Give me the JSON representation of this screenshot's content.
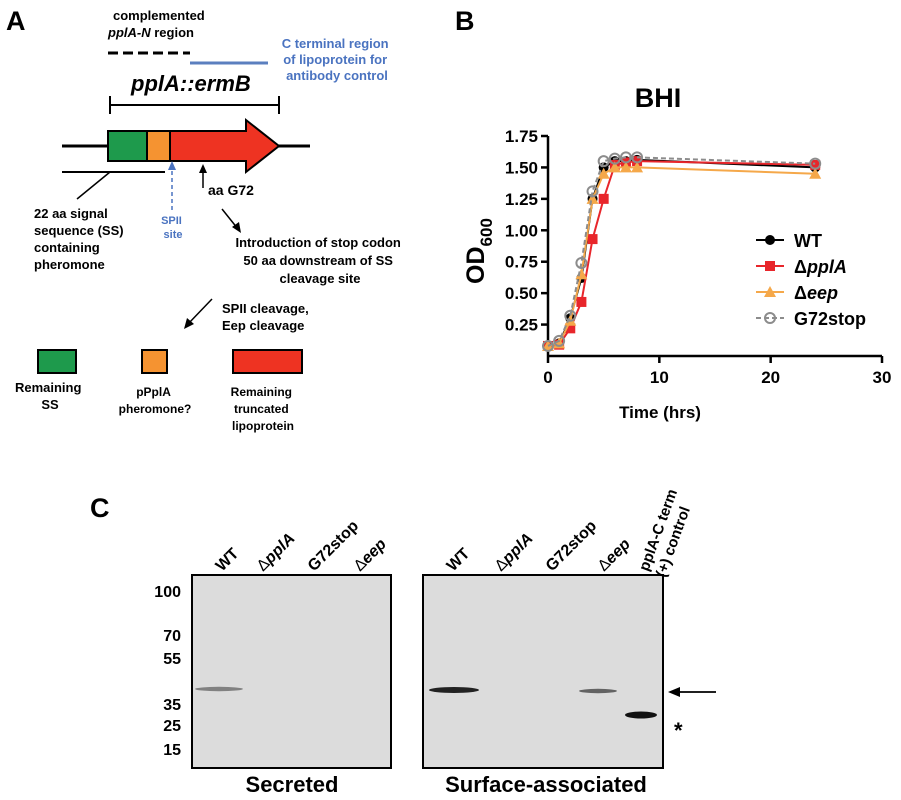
{
  "panels": {
    "a": "A",
    "b": "B",
    "c": "C"
  },
  "panel_a": {
    "complemented_line1": "complemented",
    "complemented_line2_gene": "pplA-N",
    "complemented_line2_rest": " region",
    "cterm_label": [
      "C terminal region",
      "of lipoprotein for",
      "antibody control"
    ],
    "gene_title": "pplA::ermB",
    "signal_label": [
      "22 aa signal",
      "sequence (SS)",
      "containing",
      "pheromone"
    ],
    "spii_label": [
      "SPII",
      "site"
    ],
    "g72_label": "aa G72",
    "stop_label": [
      "Introduction of stop codon",
      "50 aa downstream of SS",
      "cleavage site"
    ],
    "cleavage_label": [
      "SPII cleavage,",
      "Eep cleavage"
    ],
    "products": [
      {
        "lines": [
          "Remaining",
          "SS"
        ],
        "color": "#1e9a4c"
      },
      {
        "lines": [
          "pPplA",
          "pheromone?"
        ],
        "color": "#f59331"
      },
      {
        "lines": [
          "Remaining",
          "truncated",
          "lipoprotein"
        ],
        "color": "#ee3322"
      }
    ],
    "colors": {
      "ss": "#1e9a4c",
      "pheromone": "#f59331",
      "lipoprotein": "#ee3322",
      "cterm_line": "#5b7fbf",
      "spii": "#4a73c0"
    }
  },
  "chart_data": {
    "type": "line",
    "title": "BHI",
    "xlabel": "Time (hrs)",
    "ylabel_main": "OD",
    "ylabel_sub": "600",
    "xlim": [
      0,
      30
    ],
    "ylim": [
      0,
      1.75
    ],
    "xticks": [
      0,
      10,
      20,
      30
    ],
    "yticks": [
      0.25,
      0.5,
      0.75,
      1.0,
      1.25,
      1.5,
      1.75
    ],
    "ytick_labels": [
      "0.25",
      "0.50",
      "0.75",
      "1.00",
      "1.25",
      "1.50",
      "1.75"
    ],
    "legend_position": "right",
    "series": [
      {
        "name": "WT",
        "italic": false,
        "prefix": "",
        "color": "#000000",
        "marker": "circle-filled",
        "x": [
          0,
          1,
          2,
          3,
          4,
          5,
          6,
          7,
          8,
          24
        ],
        "y": [
          0.08,
          0.1,
          0.3,
          0.62,
          1.25,
          1.5,
          1.55,
          1.55,
          1.56,
          1.5
        ]
      },
      {
        "name": "pplA",
        "italic": true,
        "prefix": "Δ",
        "color": "#e8262b",
        "marker": "square",
        "x": [
          0,
          1,
          2,
          3,
          4,
          5,
          6,
          7,
          8,
          24
        ],
        "y": [
          0.08,
          0.09,
          0.22,
          0.43,
          0.93,
          1.25,
          1.52,
          1.54,
          1.55,
          1.52
        ]
      },
      {
        "name": "eep",
        "italic": true,
        "prefix": "Δ",
        "color": "#f5a84a",
        "marker": "triangle",
        "x": [
          0,
          1,
          2,
          3,
          4,
          5,
          6,
          7,
          8,
          24
        ],
        "y": [
          0.08,
          0.1,
          0.28,
          0.65,
          1.25,
          1.45,
          1.5,
          1.5,
          1.5,
          1.45
        ]
      },
      {
        "name": "G72stop",
        "italic": false,
        "prefix": "",
        "color": "#8c8c8c",
        "marker": "circle-open",
        "x": [
          0,
          1,
          2,
          3,
          4,
          5,
          6,
          7,
          8,
          24
        ],
        "y": [
          0.08,
          0.12,
          0.32,
          0.74,
          1.31,
          1.55,
          1.57,
          1.58,
          1.58,
          1.53
        ]
      }
    ]
  },
  "panel_c": {
    "lanes_secreted": [
      {
        "prefix": "",
        "name": "WT",
        "italic": false
      },
      {
        "prefix": "Δ",
        "name": "pplA",
        "italic": true
      },
      {
        "prefix": "",
        "name": "G72stop",
        "italic": false
      },
      {
        "prefix": "Δ",
        "name": "eep",
        "italic": true
      }
    ],
    "lanes_surface": [
      {
        "prefix": "",
        "name": "WT",
        "italic": false
      },
      {
        "prefix": "Δ",
        "name": "pplA",
        "italic": true
      },
      {
        "prefix": "",
        "name": "G72stop",
        "italic": false
      },
      {
        "prefix": "Δ",
        "name": "eep",
        "italic": true
      }
    ],
    "control_label": [
      "pplA-C term",
      "(+) control"
    ],
    "markers": [
      "100",
      "70",
      "55",
      "35",
      "25",
      "15"
    ],
    "secreted_label": "Secreted",
    "surface_label": "Surface-associated",
    "asterisk": "*"
  }
}
